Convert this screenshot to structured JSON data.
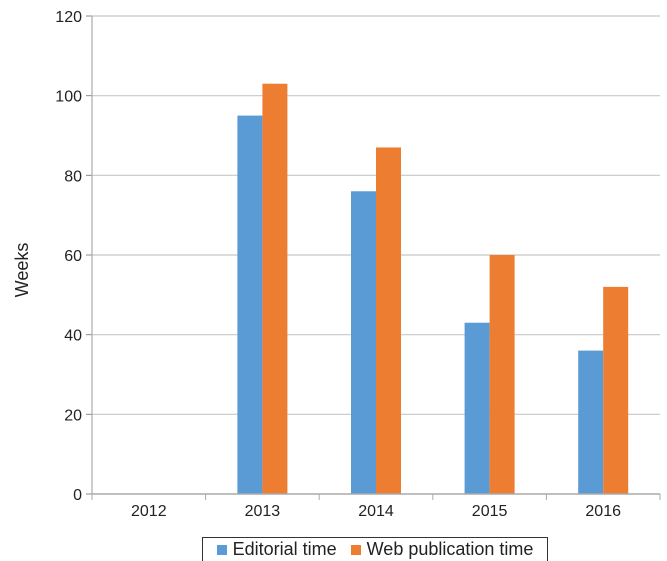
{
  "chart_data": {
    "type": "bar",
    "categories": [
      "2012",
      "2013",
      "2014",
      "2015",
      "2016"
    ],
    "series": [
      {
        "name": "Editorial time",
        "values": [
          0,
          95,
          76,
          43,
          36
        ],
        "color": "#5B9BD5"
      },
      {
        "name": "Web publication time",
        "values": [
          0,
          103,
          87,
          60,
          52
        ],
        "color": "#ED7D31"
      }
    ],
    "ylabel": "Weeks",
    "ylim": [
      0,
      120
    ],
    "yticks": [
      0,
      20,
      40,
      60,
      80,
      100,
      120
    ],
    "grid": true,
    "legend": "bottom"
  }
}
